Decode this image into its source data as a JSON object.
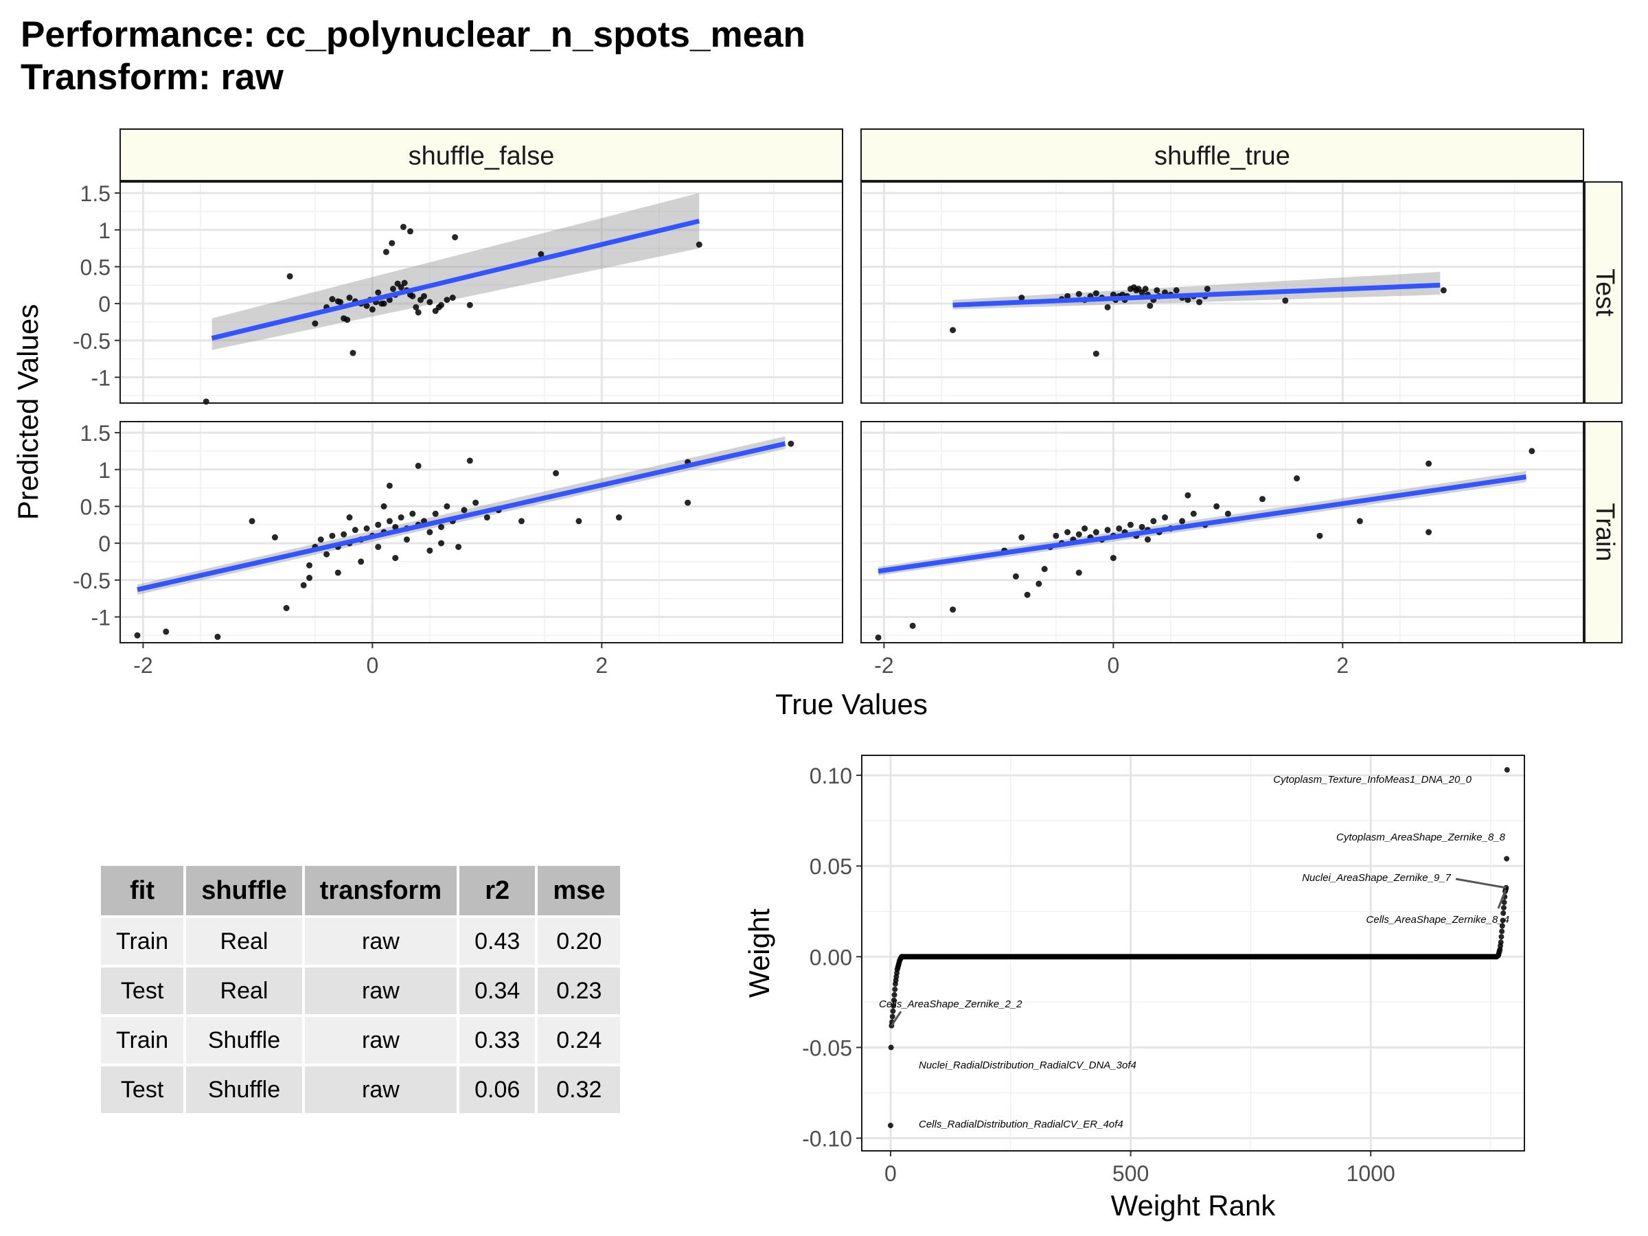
{
  "title_line1": "Performance: cc_polynuclear_n_spots_mean",
  "title_line2": "Transform: raw",
  "chart_data": [
    {
      "type": "scatter",
      "xlabel": "True Values",
      "ylabel": "Predicted Values",
      "xlim": [
        -2.2,
        4.1
      ],
      "x_ticks": [
        -2,
        0,
        2
      ],
      "facet_columns": [
        "shuffle_false",
        "shuffle_true"
      ],
      "facet_rows": [
        "Test",
        "Train"
      ],
      "panels": [
        {
          "column": "shuffle_false",
          "row": "Test",
          "ylim": [
            -1.35,
            1.65
          ],
          "y_ticks": [
            1.5,
            1.0,
            0.5,
            0.0,
            -0.5,
            -1.0
          ],
          "fit": {
            "x": [
              -1.4,
              2.85
            ],
            "y": [
              -0.47,
              1.12
            ],
            "ci_low": [
              -0.63,
              0.75
            ],
            "ci_high": [
              -0.2,
              1.5
            ]
          },
          "points": [
            [
              -1.45,
              -1.33
            ],
            [
              -0.72,
              0.37
            ],
            [
              -0.5,
              -0.27
            ],
            [
              -0.4,
              -0.05
            ],
            [
              -0.35,
              0.06
            ],
            [
              -0.3,
              0.03
            ],
            [
              -0.28,
              0.02
            ],
            [
              -0.25,
              -0.2
            ],
            [
              -0.22,
              -0.22
            ],
            [
              -0.2,
              0.08
            ],
            [
              -0.15,
              0.03
            ],
            [
              -0.1,
              0.0
            ],
            [
              -0.05,
              -0.03
            ],
            [
              -0.02,
              0.05
            ],
            [
              0.0,
              -0.08
            ],
            [
              0.03,
              0.02
            ],
            [
              0.05,
              0.15
            ],
            [
              0.08,
              0.0
            ],
            [
              0.1,
              0.0
            ],
            [
              0.12,
              0.7
            ],
            [
              0.15,
              0.05
            ],
            [
              0.18,
              0.2
            ],
            [
              0.2,
              0.12
            ],
            [
              0.22,
              0.27
            ],
            [
              0.25,
              0.22
            ],
            [
              0.28,
              0.28
            ],
            [
              0.3,
              0.18
            ],
            [
              0.33,
              0.12
            ],
            [
              0.35,
              0.1
            ],
            [
              0.38,
              -0.05
            ],
            [
              0.4,
              -0.12
            ],
            [
              0.42,
              0.05
            ],
            [
              0.45,
              0.1
            ],
            [
              0.5,
              0.02
            ],
            [
              0.55,
              -0.1
            ],
            [
              0.58,
              -0.05
            ],
            [
              0.6,
              -0.02
            ],
            [
              0.65,
              0.05
            ],
            [
              0.7,
              0.08
            ],
            [
              0.72,
              0.9
            ],
            [
              0.85,
              -0.02
            ],
            [
              0.27,
              1.04
            ],
            [
              0.33,
              0.98
            ],
            [
              0.17,
              0.82
            ],
            [
              -0.17,
              -0.67
            ],
            [
              1.47,
              0.67
            ],
            [
              2.85,
              0.8
            ]
          ]
        },
        {
          "column": "shuffle_true",
          "row": "Test",
          "ylim": [
            -1.35,
            1.65
          ],
          "y_ticks": [
            1.5,
            1.0,
            0.5,
            0.0,
            -0.5,
            -1.0
          ],
          "fit": {
            "x": [
              -1.4,
              2.85
            ],
            "y": [
              -0.02,
              0.25
            ],
            "ci_low": [
              -0.08,
              0.12
            ],
            "ci_high": [
              0.05,
              0.43
            ]
          },
          "points": [
            [
              -1.4,
              -0.36
            ],
            [
              -0.15,
              -0.68
            ],
            [
              -0.8,
              0.08
            ],
            [
              -0.45,
              0.06
            ],
            [
              -0.4,
              0.1
            ],
            [
              -0.3,
              0.13
            ],
            [
              -0.25,
              0.05
            ],
            [
              -0.2,
              0.1
            ],
            [
              -0.15,
              0.14
            ],
            [
              -0.1,
              0.08
            ],
            [
              -0.05,
              -0.05
            ],
            [
              0.0,
              0.12
            ],
            [
              0.02,
              0.05
            ],
            [
              0.05,
              0.1
            ],
            [
              0.08,
              0.12
            ],
            [
              0.1,
              0.05
            ],
            [
              0.12,
              0.1
            ],
            [
              0.15,
              0.2
            ],
            [
              0.18,
              0.22
            ],
            [
              0.2,
              0.18
            ],
            [
              0.22,
              0.2
            ],
            [
              0.25,
              0.15
            ],
            [
              0.28,
              0.2
            ],
            [
              0.3,
              0.12
            ],
            [
              0.32,
              -0.03
            ],
            [
              0.35,
              0.05
            ],
            [
              0.38,
              0.18
            ],
            [
              0.4,
              0.1
            ],
            [
              0.45,
              0.15
            ],
            [
              0.5,
              0.12
            ],
            [
              0.55,
              0.18
            ],
            [
              0.6,
              0.08
            ],
            [
              0.65,
              0.05
            ],
            [
              0.7,
              0.1
            ],
            [
              0.75,
              0.02
            ],
            [
              0.8,
              0.1
            ],
            [
              0.82,
              0.2
            ],
            [
              1.5,
              0.04
            ],
            [
              2.88,
              0.18
            ]
          ]
        },
        {
          "column": "shuffle_false",
          "row": "Train",
          "ylim": [
            -1.35,
            1.65
          ],
          "y_ticks": [
            1.5,
            1.0,
            0.5,
            0.0,
            -0.5,
            -1.0
          ],
          "fit": {
            "x": [
              -2.05,
              3.6
            ],
            "y": [
              -0.63,
              1.35
            ],
            "ci_low": [
              -0.7,
              1.28
            ],
            "ci_high": [
              -0.56,
              1.45
            ]
          },
          "points": [
            [
              -2.05,
              -1.25
            ],
            [
              -1.8,
              -1.2
            ],
            [
              -1.35,
              -1.27
            ],
            [
              -1.05,
              0.3
            ],
            [
              -0.75,
              -0.88
            ],
            [
              -0.6,
              -0.57
            ],
            [
              -0.85,
              0.08
            ],
            [
              -0.55,
              -0.3
            ],
            [
              -0.5,
              -0.05
            ],
            [
              -0.45,
              0.05
            ],
            [
              -0.4,
              -0.15
            ],
            [
              -0.35,
              0.1
            ],
            [
              -0.3,
              -0.05
            ],
            [
              -0.25,
              0.12
            ],
            [
              -0.2,
              0.0
            ],
            [
              -0.15,
              0.18
            ],
            [
              -0.1,
              0.05
            ],
            [
              -0.05,
              0.2
            ],
            [
              0.0,
              0.1
            ],
            [
              0.05,
              0.25
            ],
            [
              0.1,
              0.15
            ],
            [
              0.15,
              0.3
            ],
            [
              0.2,
              0.22
            ],
            [
              0.25,
              0.35
            ],
            [
              0.3,
              0.2
            ],
            [
              0.35,
              0.4
            ],
            [
              0.4,
              0.25
            ],
            [
              0.45,
              0.3
            ],
            [
              0.5,
              0.15
            ],
            [
              0.55,
              0.4
            ],
            [
              0.6,
              0.22
            ],
            [
              0.65,
              0.5
            ],
            [
              0.7,
              0.3
            ],
            [
              0.8,
              0.45
            ],
            [
              0.9,
              0.55
            ],
            [
              1.0,
              0.35
            ],
            [
              1.1,
              0.45
            ],
            [
              0.4,
              1.05
            ],
            [
              0.85,
              1.12
            ],
            [
              0.15,
              0.78
            ],
            [
              -0.55,
              -0.47
            ],
            [
              -0.3,
              -0.4
            ],
            [
              0.2,
              -0.2
            ],
            [
              0.5,
              -0.1
            ],
            [
              1.3,
              0.3
            ],
            [
              1.6,
              0.95
            ],
            [
              1.8,
              0.3
            ],
            [
              2.15,
              0.35
            ],
            [
              2.75,
              1.1
            ],
            [
              2.75,
              0.55
            ],
            [
              3.65,
              1.35
            ],
            [
              -0.1,
              -0.25
            ],
            [
              0.05,
              -0.05
            ],
            [
              0.3,
              0.05
            ],
            [
              0.6,
              0.0
            ],
            [
              0.75,
              -0.05
            ],
            [
              -0.2,
              0.35
            ],
            [
              0.1,
              0.5
            ]
          ]
        },
        {
          "column": "shuffle_true",
          "row": "Train",
          "ylim": [
            -1.35,
            1.65
          ],
          "y_ticks": [
            1.5,
            1.0,
            0.5,
            0.0,
            -0.5,
            -1.0
          ],
          "fit": {
            "x": [
              -2.05,
              3.6
            ],
            "y": [
              -0.38,
              0.9
            ],
            "ci_low": [
              -0.44,
              0.83
            ],
            "ci_high": [
              -0.32,
              0.98
            ]
          },
          "points": [
            [
              -2.05,
              -1.28
            ],
            [
              -1.75,
              -1.12
            ],
            [
              -1.4,
              -0.9
            ],
            [
              -0.95,
              -0.1
            ],
            [
              -0.8,
              0.08
            ],
            [
              -0.75,
              -0.7
            ],
            [
              -0.65,
              -0.55
            ],
            [
              -0.6,
              -0.35
            ],
            [
              -0.55,
              -0.05
            ],
            [
              -0.5,
              0.1
            ],
            [
              -0.45,
              0.0
            ],
            [
              -0.4,
              0.15
            ],
            [
              -0.35,
              0.05
            ],
            [
              -0.3,
              0.12
            ],
            [
              -0.25,
              0.2
            ],
            [
              -0.2,
              0.08
            ],
            [
              -0.15,
              0.15
            ],
            [
              -0.1,
              0.05
            ],
            [
              -0.05,
              0.18
            ],
            [
              0.0,
              0.1
            ],
            [
              0.05,
              0.2
            ],
            [
              0.1,
              0.15
            ],
            [
              0.15,
              0.25
            ],
            [
              0.2,
              0.1
            ],
            [
              0.25,
              0.22
            ],
            [
              0.3,
              0.18
            ],
            [
              0.35,
              0.3
            ],
            [
              0.4,
              0.15
            ],
            [
              0.45,
              0.35
            ],
            [
              0.5,
              0.2
            ],
            [
              0.6,
              0.3
            ],
            [
              0.7,
              0.4
            ],
            [
              0.8,
              0.25
            ],
            [
              0.9,
              0.5
            ],
            [
              1.0,
              0.4
            ],
            [
              1.3,
              0.6
            ],
            [
              1.6,
              0.88
            ],
            [
              1.8,
              0.1
            ],
            [
              2.15,
              0.3
            ],
            [
              2.75,
              1.08
            ],
            [
              2.75,
              0.15
            ],
            [
              3.65,
              1.25
            ],
            [
              -0.3,
              -0.4
            ],
            [
              0.0,
              -0.2
            ],
            [
              0.3,
              0.05
            ],
            [
              0.65,
              0.65
            ],
            [
              -0.85,
              -0.45
            ]
          ]
        }
      ]
    },
    {
      "type": "table",
      "columns": [
        "fit",
        "shuffle",
        "transform",
        "r2",
        "mse"
      ],
      "rows": [
        [
          "Train",
          "Real",
          "raw",
          "0.43",
          "0.20"
        ],
        [
          "Test",
          "Real",
          "raw",
          "0.34",
          "0.23"
        ],
        [
          "Train",
          "Shuffle",
          "raw",
          "0.33",
          "0.24"
        ],
        [
          "Test",
          "Shuffle",
          "raw",
          "0.06",
          "0.32"
        ]
      ]
    },
    {
      "type": "scatter",
      "xlabel": "Weight Rank",
      "ylabel": "Weight",
      "xlim": [
        -60,
        1320
      ],
      "ylim": [
        -0.107,
        0.111
      ],
      "x_ticks": [
        0,
        500,
        1000
      ],
      "y_ticks": [
        0.1,
        0.05,
        0.0,
        -0.05,
        -0.1
      ],
      "y_tick_labels": [
        "0.10",
        "0.05",
        "0.00",
        "-0.05",
        "-0.10"
      ],
      "n_features": 1285,
      "head_weights": [
        -0.093,
        -0.05,
        -0.038,
        -0.036,
        -0.033,
        -0.03,
        -0.027,
        -0.024,
        -0.021,
        -0.018,
        -0.015,
        -0.013,
        -0.011,
        -0.009,
        -0.007,
        -0.006,
        -0.005,
        -0.004,
        -0.003,
        -0.002,
        -0.0015,
        -0.001,
        -0.0005
      ],
      "tail_weights": [
        0.0005,
        0.001,
        0.002,
        0.003,
        0.004,
        0.006,
        0.008,
        0.011,
        0.014,
        0.017,
        0.02,
        0.024,
        0.027,
        0.03,
        0.033,
        0.036,
        0.037,
        0.038,
        0.054,
        0.103
      ],
      "annotations": [
        {
          "label": "Cytoplasm_Texture_InfoMeas1_DNA_20_0",
          "rank": 1284,
          "weight": 0.103
        },
        {
          "label": "Cytoplasm_AreaShape_Zernike_8_8",
          "rank": 1283,
          "weight": 0.054
        },
        {
          "label": "Nuclei_AreaShape_Zernike_9_7",
          "rank": 1282,
          "weight": 0.038
        },
        {
          "label": "Cells_AreaShape_Zernike_8_4",
          "rank": 1281,
          "weight": 0.037
        },
        {
          "label": "Cells_AreaShape_Zernike_2_2",
          "rank": 2,
          "weight": -0.038
        },
        {
          "label": "Nuclei_RadialDistribution_RadialCV_DNA_3of4",
          "rank": 1,
          "weight": -0.05
        },
        {
          "label": "Cells_RadialDistribution_RadialCV_ER_4of4",
          "rank": 0,
          "weight": -0.093
        }
      ]
    }
  ]
}
